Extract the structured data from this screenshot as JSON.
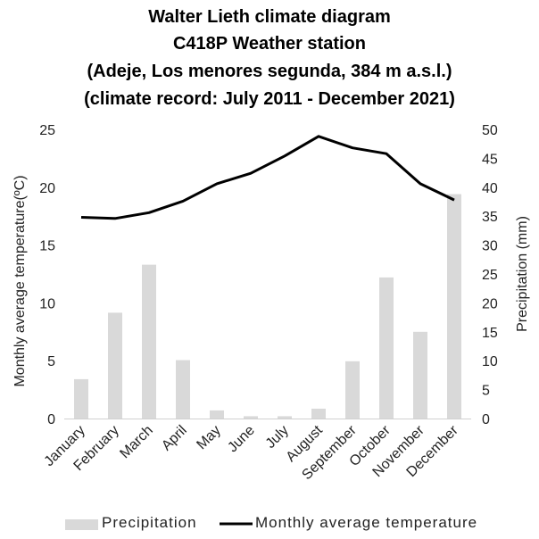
{
  "chart_data": {
    "type": "bar",
    "title_lines": [
      "Walter Lieth climate diagram",
      "C418P Weather station",
      "(Adeje, Los menores segunda, 384 m a.s.l.)",
      "(climate record: July 2011 - December 2021)"
    ],
    "categories": [
      "January",
      "February",
      "March",
      "April",
      "May",
      "June",
      "July",
      "August",
      "September",
      "October",
      "November",
      "December"
    ],
    "series": [
      {
        "name": "Precipitation",
        "type": "bar",
        "axis": "right",
        "color": "#d9d9d9",
        "values": [
          6.8,
          18.3,
          26.6,
          10.1,
          1.4,
          0.4,
          0.4,
          1.7,
          9.9,
          24.4,
          15.0,
          38.8
        ]
      },
      {
        "name": "Monthly average temperature",
        "type": "line",
        "axis": "left",
        "color": "#000000",
        "values": [
          17.4,
          17.3,
          17.8,
          18.8,
          20.3,
          21.2,
          22.7,
          24.4,
          23.4,
          22.9,
          20.3,
          18.9
        ]
      }
    ],
    "y_left": {
      "label": "Monthly average temperature(ºC)",
      "range": [
        0,
        25
      ],
      "ticks": [
        0,
        5,
        10,
        15,
        20,
        25
      ]
    },
    "y_right": {
      "label": "Precipitation (mm)",
      "range": [
        0,
        50
      ],
      "ticks": [
        0,
        5,
        10,
        15,
        20,
        25,
        30,
        35,
        40,
        45,
        50
      ]
    },
    "grid": false,
    "legend_position": "bottom"
  }
}
